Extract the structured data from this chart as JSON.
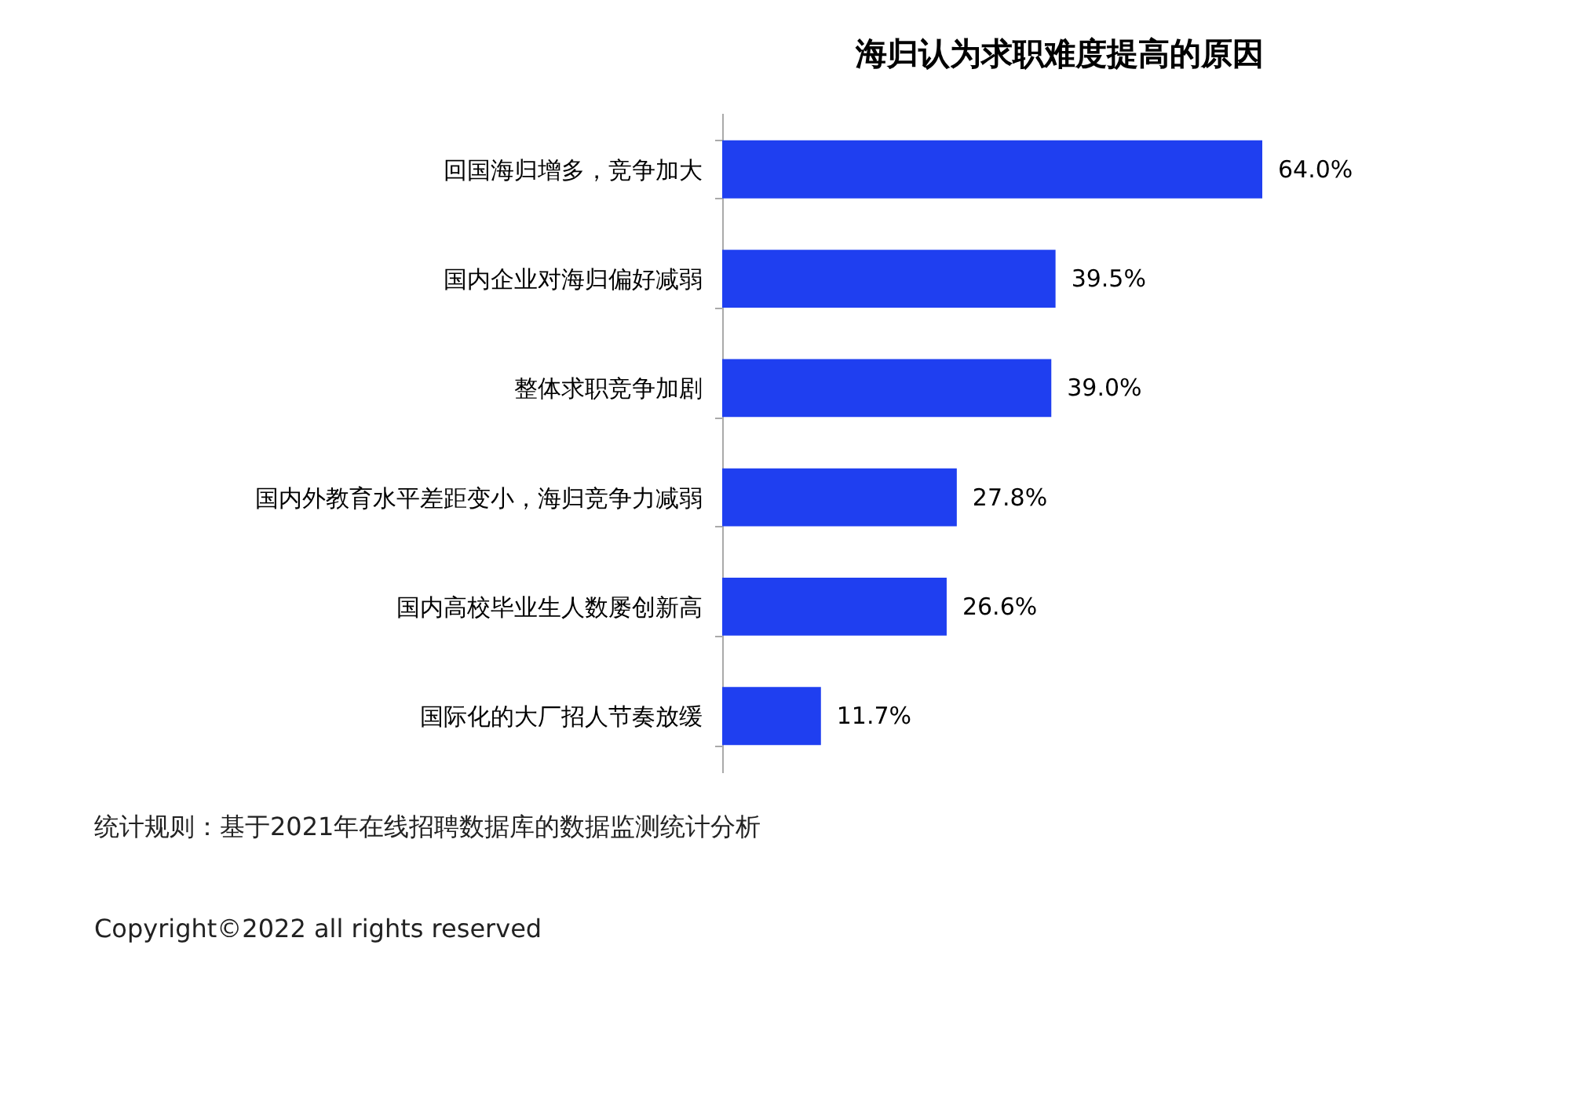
{
  "chart_data": {
    "type": "bar",
    "orientation": "horizontal",
    "title": "海归认为求职难度提高的原因",
    "categories": [
      "回国海归增多，竞争加大",
      "国内企业对海归偏好减弱",
      "整体求职竞争加剧",
      "国内外教育水平差距变小，海归竞争力减弱",
      "国内高校毕业生人数屡创新高",
      "国际化的大厂招人节奏放缓"
    ],
    "values": [
      64.0,
      39.5,
      39.0,
      27.8,
      26.6,
      11.7
    ],
    "value_labels": [
      "64.0%",
      "39.5%",
      "39.0%",
      "27.8%",
      "26.6%",
      "11.7%"
    ],
    "color": "#1f3ff0",
    "annotations": [
      "统计规则：基于2021年在线招聘数据库的数据监测统计分析",
      "Copyright©2022 all rights reserved"
    ]
  }
}
